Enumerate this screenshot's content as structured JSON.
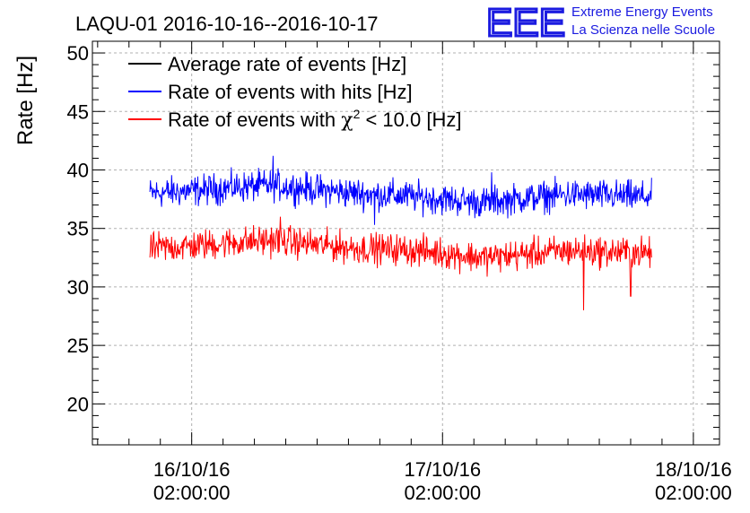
{
  "chart_data": {
    "type": "line",
    "title": "LAQU-01 2016-10-16--2016-10-17",
    "ylabel": "Rate [Hz]",
    "xlabel": "",
    "ylim": [
      16.5,
      51
    ],
    "y_ticks": [
      20,
      25,
      30,
      35,
      40,
      45,
      50
    ],
    "x_range_hours": [
      -9.5,
      50.5
    ],
    "x_ticks": [
      {
        "hour": 0,
        "line1": "16/10/16",
        "line2": "02:00:00"
      },
      {
        "hour": 24,
        "line1": "17/10/16",
        "line2": "02:00:00"
      },
      {
        "hour": 48,
        "line1": "18/10/16",
        "line2": "02:00:00"
      }
    ],
    "grid": true,
    "legend": {
      "position": "top-left",
      "entries": [
        {
          "label": "Average rate of events [Hz]",
          "color": "#000000"
        },
        {
          "label": "Rate of events with hits [Hz]",
          "color": "#0000ff"
        },
        {
          "label_prefix": "Rate of events with ",
          "label_chi": "χ",
          "label_sup": "2",
          "label_suffix": " < 10.0 [Hz]",
          "color": "#ff0000"
        }
      ]
    },
    "series": [
      {
        "name": "Rate of events with hits [Hz]",
        "color": "#0000ff",
        "hours_start": -4,
        "hours_end": 44,
        "anchor_hours": [
          -4,
          0,
          4,
          8,
          12,
          16,
          20,
          24,
          28,
          32,
          36,
          40,
          44
        ],
        "anchor_values": [
          38.0,
          38.2,
          38.5,
          38.7,
          38.3,
          38.0,
          37.8,
          37.5,
          37.2,
          37.6,
          37.9,
          37.8,
          37.7
        ],
        "noise_amplitude": 1.0,
        "spikes": [
          {
            "hour": 7.8,
            "value": 41.2
          },
          {
            "hour": 17.5,
            "value": 35.3
          },
          {
            "hour": 28.7,
            "value": 39.8
          }
        ]
      },
      {
        "name": "Rate of events with χ2 < 10.0 [Hz]",
        "color": "#ff0000",
        "hours_start": -4,
        "hours_end": 44,
        "anchor_hours": [
          -4,
          0,
          4,
          8,
          12,
          16,
          20,
          24,
          28,
          32,
          36,
          40,
          44
        ],
        "anchor_values": [
          33.3,
          33.5,
          33.8,
          34.0,
          33.6,
          33.3,
          33.2,
          32.9,
          32.5,
          32.8,
          33.1,
          33.0,
          32.9
        ],
        "noise_amplitude": 1.0,
        "spikes": [
          {
            "hour": 37.5,
            "value": 28.0
          },
          {
            "hour": 42.0,
            "value": 29.2
          },
          {
            "hour": 8.5,
            "value": 36.0
          }
        ]
      }
    ]
  },
  "logo": {
    "mark": "EEE",
    "line1": "Extreme Energy Events",
    "line2": "La Scienza nelle Scuole",
    "color": "#1b1be0"
  }
}
